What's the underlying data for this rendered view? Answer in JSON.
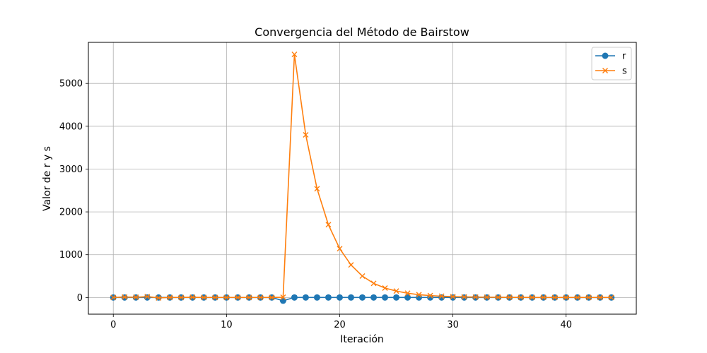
{
  "chart_data": {
    "type": "line",
    "title": "Convergencia del Método de Bairstow",
    "xlabel": "Iteración",
    "ylabel": "Valor de r y s",
    "xlim": [
      -2.2,
      46.2
    ],
    "ylim": [
      -390,
      5960
    ],
    "xticks": [
      0,
      10,
      20,
      30,
      40
    ],
    "yticks": [
      0,
      1000,
      2000,
      3000,
      4000,
      5000
    ],
    "grid": true,
    "legend_position": "top-right",
    "x": [
      0,
      1,
      2,
      3,
      4,
      5,
      6,
      7,
      8,
      9,
      10,
      11,
      12,
      13,
      14,
      15,
      16,
      17,
      18,
      19,
      20,
      21,
      22,
      23,
      24,
      25,
      26,
      27,
      28,
      29,
      30,
      31,
      32,
      33,
      34,
      35,
      36,
      37,
      38,
      39,
      40,
      41,
      42,
      43,
      44
    ],
    "series": [
      {
        "name": "r",
        "color": "#1f77b4",
        "marker": "circle",
        "values": [
          0,
          0,
          0,
          0,
          0,
          0,
          0,
          0,
          0,
          0,
          0,
          0,
          0,
          0,
          0,
          -75,
          0,
          0,
          0,
          0,
          0,
          0,
          0,
          0,
          0,
          0,
          0,
          0,
          0,
          0,
          0,
          0,
          0,
          0,
          0,
          0,
          0,
          0,
          0,
          0,
          0,
          0,
          0,
          0,
          0
        ]
      },
      {
        "name": "s",
        "color": "#ff7f0e",
        "marker": "x",
        "values": [
          0,
          10,
          5,
          20,
          -10,
          0,
          0,
          5,
          0,
          0,
          0,
          0,
          0,
          0,
          0,
          5,
          5680,
          3800,
          2540,
          1700,
          1140,
          760,
          500,
          330,
          220,
          150,
          100,
          65,
          45,
          30,
          20,
          13,
          9,
          6,
          4,
          3,
          2,
          1,
          1,
          0,
          0,
          0,
          0,
          0,
          0
        ]
      }
    ]
  }
}
